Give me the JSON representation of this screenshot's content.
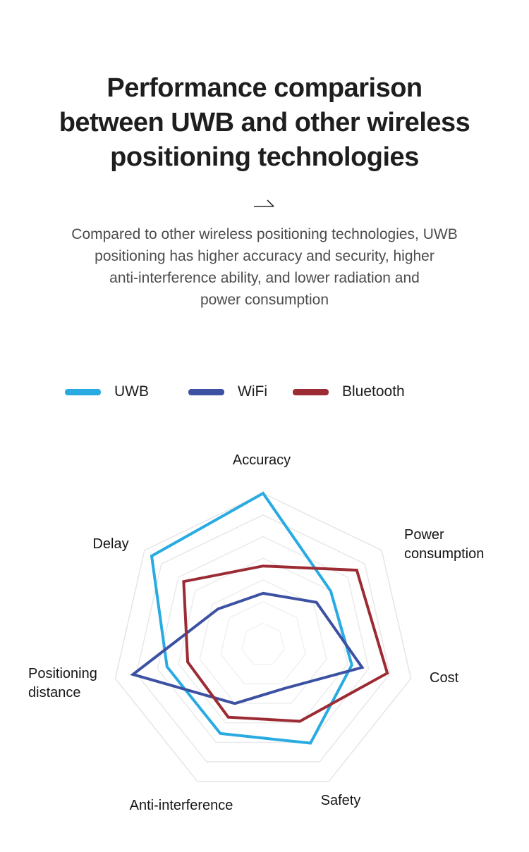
{
  "header": {
    "title_lines": [
      "Performance comparison",
      "between UWB and other wireless",
      "positioning technologies"
    ],
    "subtitle_lines": [
      "Compared to other wireless positioning technologies, UWB",
      "positioning has higher accuracy and security, higher",
      "anti-interference ability, and lower radiation and",
      "power consumption"
    ]
  },
  "chart_data": {
    "type": "radar",
    "title": "Performance comparison between UWB and other wireless positioning technologies",
    "categories": [
      "Accuracy",
      "Power consumption",
      "Cost",
      "Safety",
      "Anti-interference",
      "Positioning distance",
      "Delay"
    ],
    "series": [
      {
        "name": "UWB",
        "color": "#29ABE2",
        "values": [
          100,
          57,
          60,
          72,
          65,
          65,
          94
        ]
      },
      {
        "name": "WiFi",
        "color": "#3D51A2",
        "values": [
          34,
          45,
          67,
          32,
          43,
          88,
          38
        ]
      },
      {
        "name": "Bluetooth",
        "color": "#9C2B33",
        "values": [
          52,
          79,
          84,
          56,
          53,
          51,
          67
        ]
      }
    ],
    "scale_max": 100,
    "rings": 7,
    "grid_on": true,
    "grid_color": "#E4E4E4",
    "axis_spokes": false,
    "legend_position": "top",
    "draw_order_note": "UWB bottom, WiFi middle, Bluetooth top"
  }
}
